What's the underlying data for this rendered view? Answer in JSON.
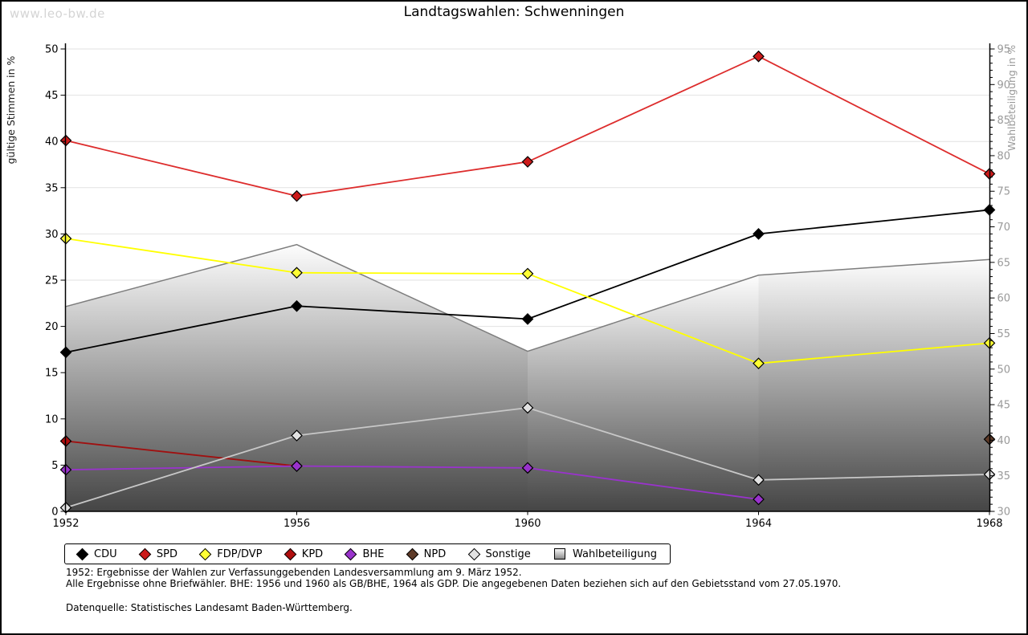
{
  "watermark": "www.leo-bw.de",
  "title": "Landtagswahlen: Schwenningen",
  "chart_data": {
    "type": "line",
    "x": [
      1952,
      1956,
      1960,
      1964,
      1968
    ],
    "ylabel_left": "gültige Stimmen in %",
    "ylabel_right": "Wahlbeteiligung in %",
    "ylim_left": [
      0,
      50
    ],
    "ytick_step_left": 5,
    "ylim_right": [
      30,
      95
    ],
    "ytick_step_right": 5,
    "ytick_minor_step_right": 1,
    "grid": "horizontal",
    "legend_position": "bottom",
    "series": [
      {
        "name": "CDU",
        "axis": "left",
        "color": "#000000",
        "marker_fill": "#000000",
        "values": [
          17.2,
          22.2,
          20.8,
          30.0,
          32.6
        ]
      },
      {
        "name": "SPD",
        "axis": "left",
        "color": "#dd2c2c",
        "marker_fill": "#cc1a1a",
        "values": [
          40.1,
          34.1,
          37.8,
          49.2,
          36.5
        ]
      },
      {
        "name": "FDP/DVP",
        "axis": "left",
        "color": "#ffff00",
        "marker_fill": "#ffff33",
        "values": [
          29.5,
          25.8,
          25.7,
          16.0,
          18.2
        ]
      },
      {
        "name": "KPD",
        "axis": "left",
        "color": "#a01010",
        "marker_fill": "#b00d0d",
        "values": [
          7.6,
          4.9,
          null,
          null,
          null
        ]
      },
      {
        "name": "BHE",
        "axis": "left",
        "color": "#9933cc",
        "marker_fill": "#9933cc",
        "values": [
          4.5,
          4.9,
          4.7,
          1.3,
          null
        ]
      },
      {
        "name": "NPD",
        "axis": "left",
        "color": "#5e3a28",
        "marker_fill": "#5e3a28",
        "values": [
          null,
          null,
          null,
          null,
          7.8
        ]
      },
      {
        "name": "Sonstige",
        "axis": "left",
        "color": "#c8c8c8",
        "marker_fill": "#e2e2e2",
        "values": [
          0.4,
          8.2,
          11.2,
          3.4,
          4.0
        ]
      }
    ],
    "area_series": {
      "name": "Wahlbeteiligung",
      "axis": "right",
      "edge_color": "#7d7d7d",
      "fill_top": "#fdfdfd",
      "fill_bottom": "#454545",
      "values": [
        58.8,
        67.5,
        52.5,
        63.2,
        65.4
      ]
    },
    "colors": {
      "gridline": "#e2e2e2",
      "axis": "#000000",
      "right_axis_text": "#999999"
    }
  },
  "legend": {
    "items": [
      {
        "label": "CDU",
        "marker": "diamond",
        "color": "#000000"
      },
      {
        "label": "SPD",
        "marker": "diamond",
        "color": "#cc1a1a"
      },
      {
        "label": "FDP/DVP",
        "marker": "diamond",
        "color": "#ffff33"
      },
      {
        "label": "KPD",
        "marker": "diamond",
        "color": "#b00d0d"
      },
      {
        "label": "BHE",
        "marker": "diamond",
        "color": "#9933cc"
      },
      {
        "label": "NPD",
        "marker": "diamond",
        "color": "#5e3a28"
      },
      {
        "label": "Sonstige",
        "marker": "diamond",
        "color": "#e2e2e2"
      },
      {
        "label": "Wahlbeteiligung",
        "marker": "square",
        "color": "gradient-gray"
      }
    ]
  },
  "footnotes": {
    "line1": "1952: Ergebnisse der Wahlen zur Verfassunggebenden Landesversammlung am 9. März 1952.",
    "line2": "Alle Ergebnisse ohne Briefwähler. BHE: 1956 und 1960 als GB/BHE, 1964 als GDP. Die angegebenen Daten beziehen sich auf den Gebietsstand vom 27.05.1970.",
    "source": "Datenquelle: Statistisches Landesamt Baden-Württemberg."
  }
}
